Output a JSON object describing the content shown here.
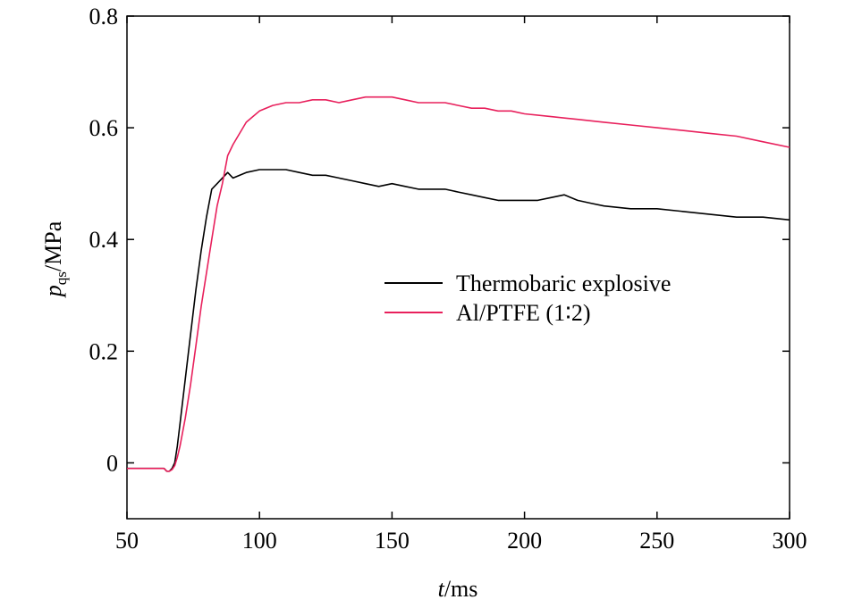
{
  "chart_data": {
    "type": "line",
    "xlabel": {
      "italic": "t",
      "rest": "/ms"
    },
    "ylabel": {
      "italic": "p",
      "sub": "qs",
      "rest": "/MPa"
    },
    "xlim": [
      50,
      300
    ],
    "ylim": [
      -0.1,
      0.8
    ],
    "xticks": [
      50,
      100,
      150,
      200,
      250,
      300
    ],
    "xtick_labels": [
      "50",
      "100",
      "150",
      "200",
      "250",
      "300"
    ],
    "yticks": [
      0,
      0.2,
      0.4,
      0.6,
      0.8
    ],
    "ytick_labels": [
      "0",
      "0.2",
      "0.4",
      "0.6",
      "0.8"
    ],
    "grid": false,
    "legend_position": "center-right",
    "series": [
      {
        "name": "Thermobaric explosive",
        "color": "#000000",
        "x": [
          50,
          55,
          60,
          64,
          65,
          66,
          67,
          68,
          69,
          70,
          72,
          74,
          76,
          78,
          80,
          82,
          84,
          86,
          88,
          90,
          95,
          100,
          105,
          110,
          115,
          120,
          125,
          130,
          135,
          140,
          145,
          150,
          155,
          160,
          165,
          170,
          175,
          180,
          185,
          190,
          195,
          200,
          205,
          210,
          215,
          220,
          225,
          230,
          240,
          250,
          260,
          270,
          280,
          290,
          300
        ],
        "y": [
          -0.01,
          -0.01,
          -0.01,
          -0.01,
          -0.015,
          -0.015,
          -0.01,
          0.0,
          0.03,
          0.07,
          0.15,
          0.23,
          0.31,
          0.38,
          0.44,
          0.49,
          0.5,
          0.51,
          0.52,
          0.51,
          0.52,
          0.525,
          0.525,
          0.525,
          0.52,
          0.515,
          0.515,
          0.51,
          0.505,
          0.5,
          0.495,
          0.5,
          0.495,
          0.49,
          0.49,
          0.49,
          0.485,
          0.48,
          0.475,
          0.47,
          0.47,
          0.47,
          0.47,
          0.475,
          0.48,
          0.47,
          0.465,
          0.46,
          0.455,
          0.455,
          0.45,
          0.445,
          0.44,
          0.44,
          0.435
        ]
      },
      {
        "name": "Al/PTFE (1∶2)",
        "color": "#e8205c",
        "x": [
          50,
          55,
          60,
          64,
          65,
          66,
          67,
          68,
          69,
          70,
          72,
          74,
          76,
          78,
          80,
          82,
          84,
          86,
          88,
          90,
          95,
          100,
          105,
          110,
          115,
          120,
          125,
          130,
          135,
          140,
          145,
          150,
          155,
          160,
          165,
          170,
          175,
          180,
          185,
          190,
          195,
          200,
          210,
          220,
          230,
          240,
          250,
          260,
          270,
          280,
          290,
          300
        ],
        "y": [
          -0.01,
          -0.01,
          -0.01,
          -0.01,
          -0.015,
          -0.015,
          -0.012,
          -0.005,
          0.01,
          0.03,
          0.08,
          0.14,
          0.21,
          0.28,
          0.34,
          0.4,
          0.46,
          0.5,
          0.55,
          0.57,
          0.61,
          0.63,
          0.64,
          0.645,
          0.645,
          0.65,
          0.65,
          0.645,
          0.65,
          0.655,
          0.655,
          0.655,
          0.65,
          0.645,
          0.645,
          0.645,
          0.64,
          0.635,
          0.635,
          0.63,
          0.63,
          0.625,
          0.62,
          0.615,
          0.61,
          0.605,
          0.6,
          0.595,
          0.59,
          0.585,
          0.575,
          0.565
        ]
      }
    ]
  }
}
